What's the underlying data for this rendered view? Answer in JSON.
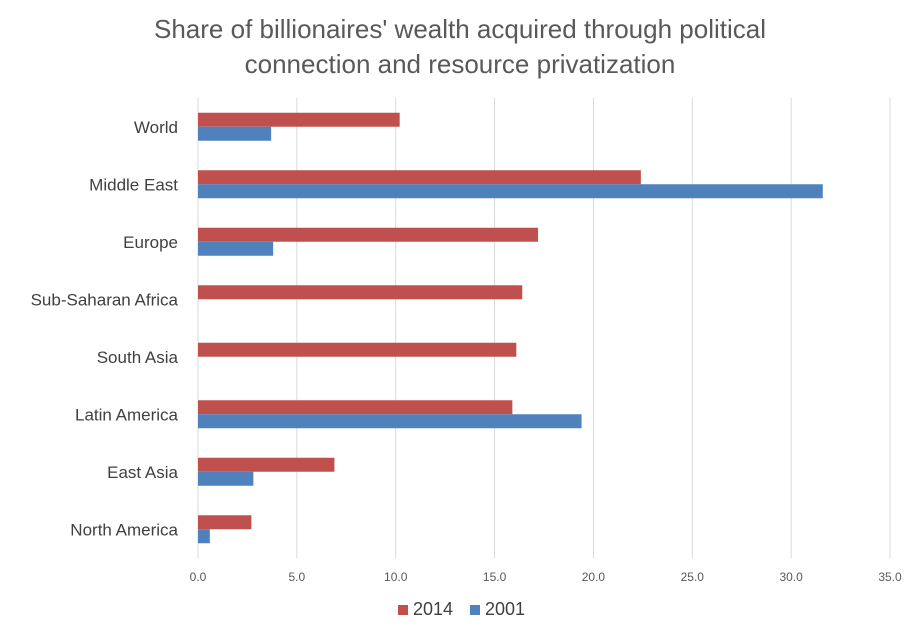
{
  "chart_data": {
    "type": "bar",
    "orientation": "horizontal",
    "title_lines": [
      "Share of billionaires' wealth acquired through political",
      "connection and resource privatization"
    ],
    "categories": [
      "World",
      "Middle East",
      "Europe",
      "Sub-Saharan Africa",
      "South Asia",
      "Latin America",
      "East Asia",
      "North America"
    ],
    "series": [
      {
        "name": "2014",
        "color": "#c0504d",
        "values": [
          10.2,
          22.4,
          17.2,
          16.4,
          16.1,
          15.9,
          6.9,
          2.7
        ]
      },
      {
        "name": "2001",
        "color": "#4f81bd",
        "values": [
          3.7,
          31.6,
          3.8,
          null,
          null,
          19.4,
          2.8,
          0.6
        ]
      }
    ],
    "xlim": [
      0,
      35
    ],
    "xticks": [
      "0.0",
      "5.0",
      "10.0",
      "15.0",
      "20.0",
      "25.0",
      "30.0",
      "35.0"
    ],
    "grid": true,
    "legend_position": "bottom"
  }
}
